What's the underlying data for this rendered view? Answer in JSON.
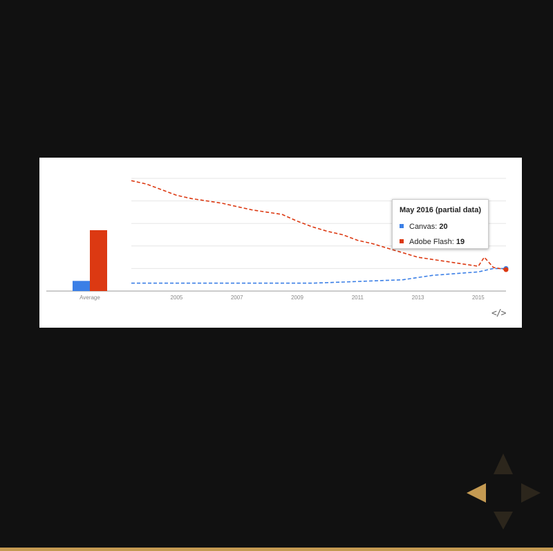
{
  "chart_data": {
    "type": "line",
    "title": "",
    "xlabel": "",
    "ylabel": "",
    "ylim": [
      0,
      100
    ],
    "grid": true,
    "x_ticks": [
      "2005",
      "2007",
      "2009",
      "2011",
      "2013",
      "2015"
    ],
    "x_range": [
      2004.0,
      2016.42
    ],
    "average_bar": {
      "label": "Average",
      "values": [
        {
          "name": "Canvas",
          "value": 9
        },
        {
          "name": "Adobe Flash",
          "value": 54
        }
      ]
    },
    "series": [
      {
        "name": "Canvas",
        "color": "#3b7fe6",
        "x": [
          2004.0,
          2005.0,
          2006.0,
          2007.0,
          2008.0,
          2009.0,
          2010.0,
          2011.0,
          2012.0,
          2013.0,
          2013.5,
          2014.0,
          2014.5,
          2015.0,
          2015.5,
          2016.0,
          2016.42
        ],
        "values": [
          7,
          7,
          7,
          7,
          7,
          7,
          7,
          8,
          9,
          10,
          12,
          14,
          15,
          16,
          17,
          20,
          20
        ]
      },
      {
        "name": "Adobe Flash",
        "color": "#dc3912",
        "x": [
          2004.0,
          2004.5,
          2005.0,
          2005.5,
          2006.0,
          2006.5,
          2007.0,
          2007.5,
          2008.0,
          2008.5,
          2009.0,
          2009.5,
          2010.0,
          2010.5,
          2011.0,
          2011.5,
          2012.0,
          2012.5,
          2013.0,
          2013.5,
          2014.0,
          2014.5,
          2015.0,
          2015.5,
          2015.7,
          2016.0,
          2016.42
        ],
        "values": [
          98,
          95,
          90,
          85,
          82,
          80,
          78,
          75,
          72,
          70,
          68,
          62,
          57,
          53,
          50,
          45,
          42,
          38,
          34,
          30,
          28,
          26,
          24,
          22,
          30,
          21,
          19
        ]
      }
    ]
  },
  "tooltip": {
    "title": "May 2016 (partial data)",
    "rows": [
      {
        "name": "Canvas",
        "value": "20",
        "color": "#3b7fe6"
      },
      {
        "name": "Adobe Flash",
        "value": "19",
        "color": "#dc3912"
      }
    ]
  },
  "embed_icon": "</>",
  "nav_icons": [
    "nav-up-icon",
    "nav-left-icon",
    "nav-right-icon",
    "nav-down-icon"
  ]
}
